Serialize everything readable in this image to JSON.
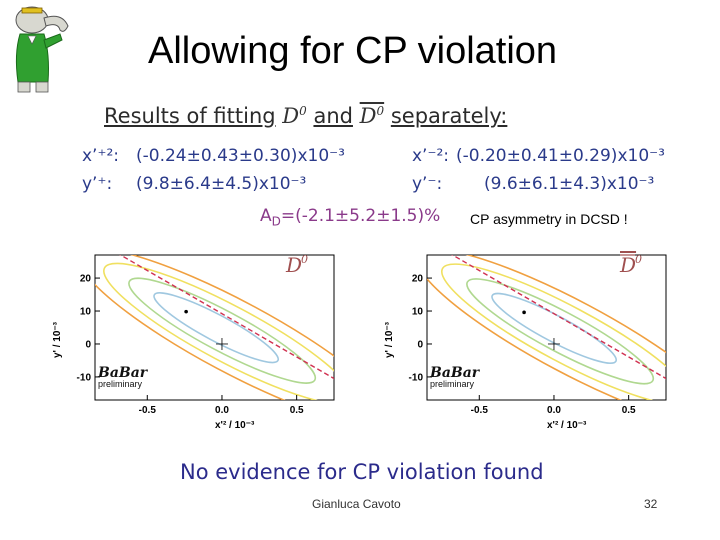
{
  "slide": {
    "title": "Allowing for CP violation",
    "heading_prefix": "Results of fitting",
    "heading_d0": "D",
    "heading_and": "and",
    "heading_d0bar": "D",
    "heading_sup": "0",
    "heading_suffix": "separately:",
    "results": {
      "xp_plus_label": "x’⁺²:",
      "xp_plus_value": "(-0.24±0.43±0.30)x10⁻³",
      "yp_plus_label": "y’⁺:",
      "yp_plus_value": "(9.8±6.4±4.5)x10⁻³",
      "xp_minus_label": "x’⁻²:",
      "xp_minus_value": "(-0.20±0.41±0.29)x10⁻³",
      "yp_minus_label": "y’⁻:",
      "yp_minus_value": "(9.6±6.1±4.3)x10⁻³"
    },
    "ad_label": "A",
    "ad_sub": "D",
    "ad_value": "=(-2.1±5.2±1.5)%",
    "cp_note": "CP asymmetry in DCSD !",
    "conclusion": "No evidence for CP violation found",
    "footer_name": "Gianluca Cavoto",
    "footer_page": "32"
  },
  "plots": [
    {
      "id": "d0",
      "label": "D",
      "label_sup": "0",
      "overbar": false,
      "xlabel": "x'² / 10⁻³",
      "ylabel": "y' / 10⁻³",
      "xticks": [
        "-0.5",
        "0.0",
        "0.5"
      ],
      "yticks": [
        "20",
        "10",
        "0",
        "-10"
      ],
      "logo": "BaBar",
      "logo_sub": "preliminary",
      "best_fit": {
        "x": -0.24,
        "y": 9.8
      },
      "no_mix_point": {
        "x": 0.0,
        "y": 0.0
      }
    },
    {
      "id": "d0bar",
      "label": "D",
      "label_sup": "0",
      "overbar": true,
      "xlabel": "x'² / 10⁻³",
      "ylabel": "y' / 10⁻³",
      "xticks": [
        "-0.5",
        "0.0",
        "0.5"
      ],
      "yticks": [
        "20",
        "10",
        "0",
        "-10"
      ],
      "logo": "BaBar",
      "logo_sub": "preliminary",
      "best_fit": {
        "x": -0.2,
        "y": 9.6
      },
      "no_mix_point": {
        "x": 0.0,
        "y": 0.0
      }
    }
  ],
  "colors": {
    "title": "#000000",
    "results": "#2a3a8a",
    "ad": "#8a3a8a",
    "conclusion": "#2b2b8b",
    "contour1": "#a0c8e0",
    "contour2": "#b0d890",
    "contour3": "#f0e060",
    "contour4": "#f0a040",
    "contour5": "#d03050",
    "plot_label": "#a05050"
  }
}
